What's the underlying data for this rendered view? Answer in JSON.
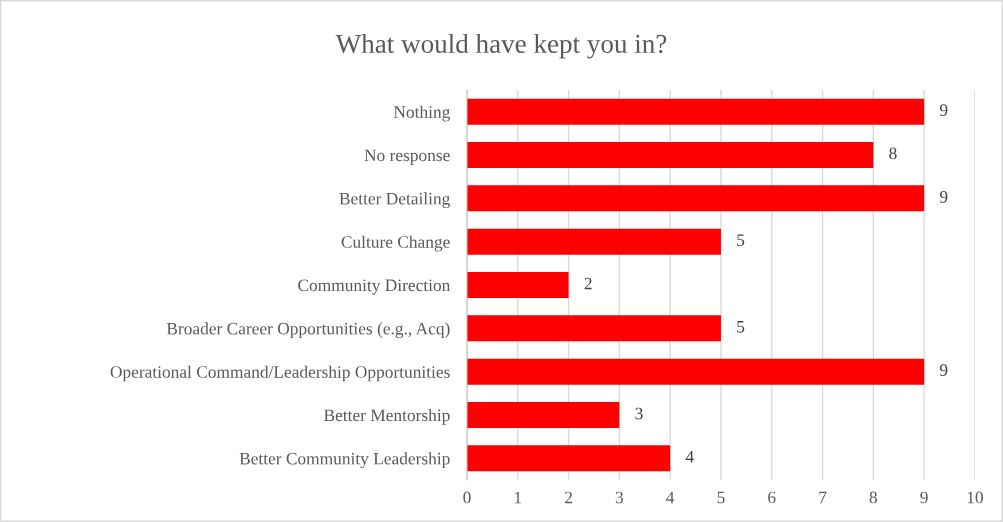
{
  "chart_data": {
    "type": "bar",
    "orientation": "horizontal",
    "title": "What would have kept you in?",
    "categories": [
      "Nothing",
      "No response",
      "Better Detailing",
      "Culture Change",
      "Community Direction",
      "Broader Career Opportunities (e.g., Acq)",
      "Operational Command/Leadership Opportunities",
      "Better Mentorship",
      "Better Community Leadership"
    ],
    "values": [
      9,
      8,
      9,
      5,
      2,
      5,
      9,
      3,
      4
    ],
    "color": "#ff0000",
    "xlim": [
      0,
      10
    ],
    "xticks": [
      0,
      1,
      2,
      3,
      4,
      5,
      6,
      7,
      8,
      9,
      10
    ],
    "grid": "x",
    "data_labels": true
  }
}
